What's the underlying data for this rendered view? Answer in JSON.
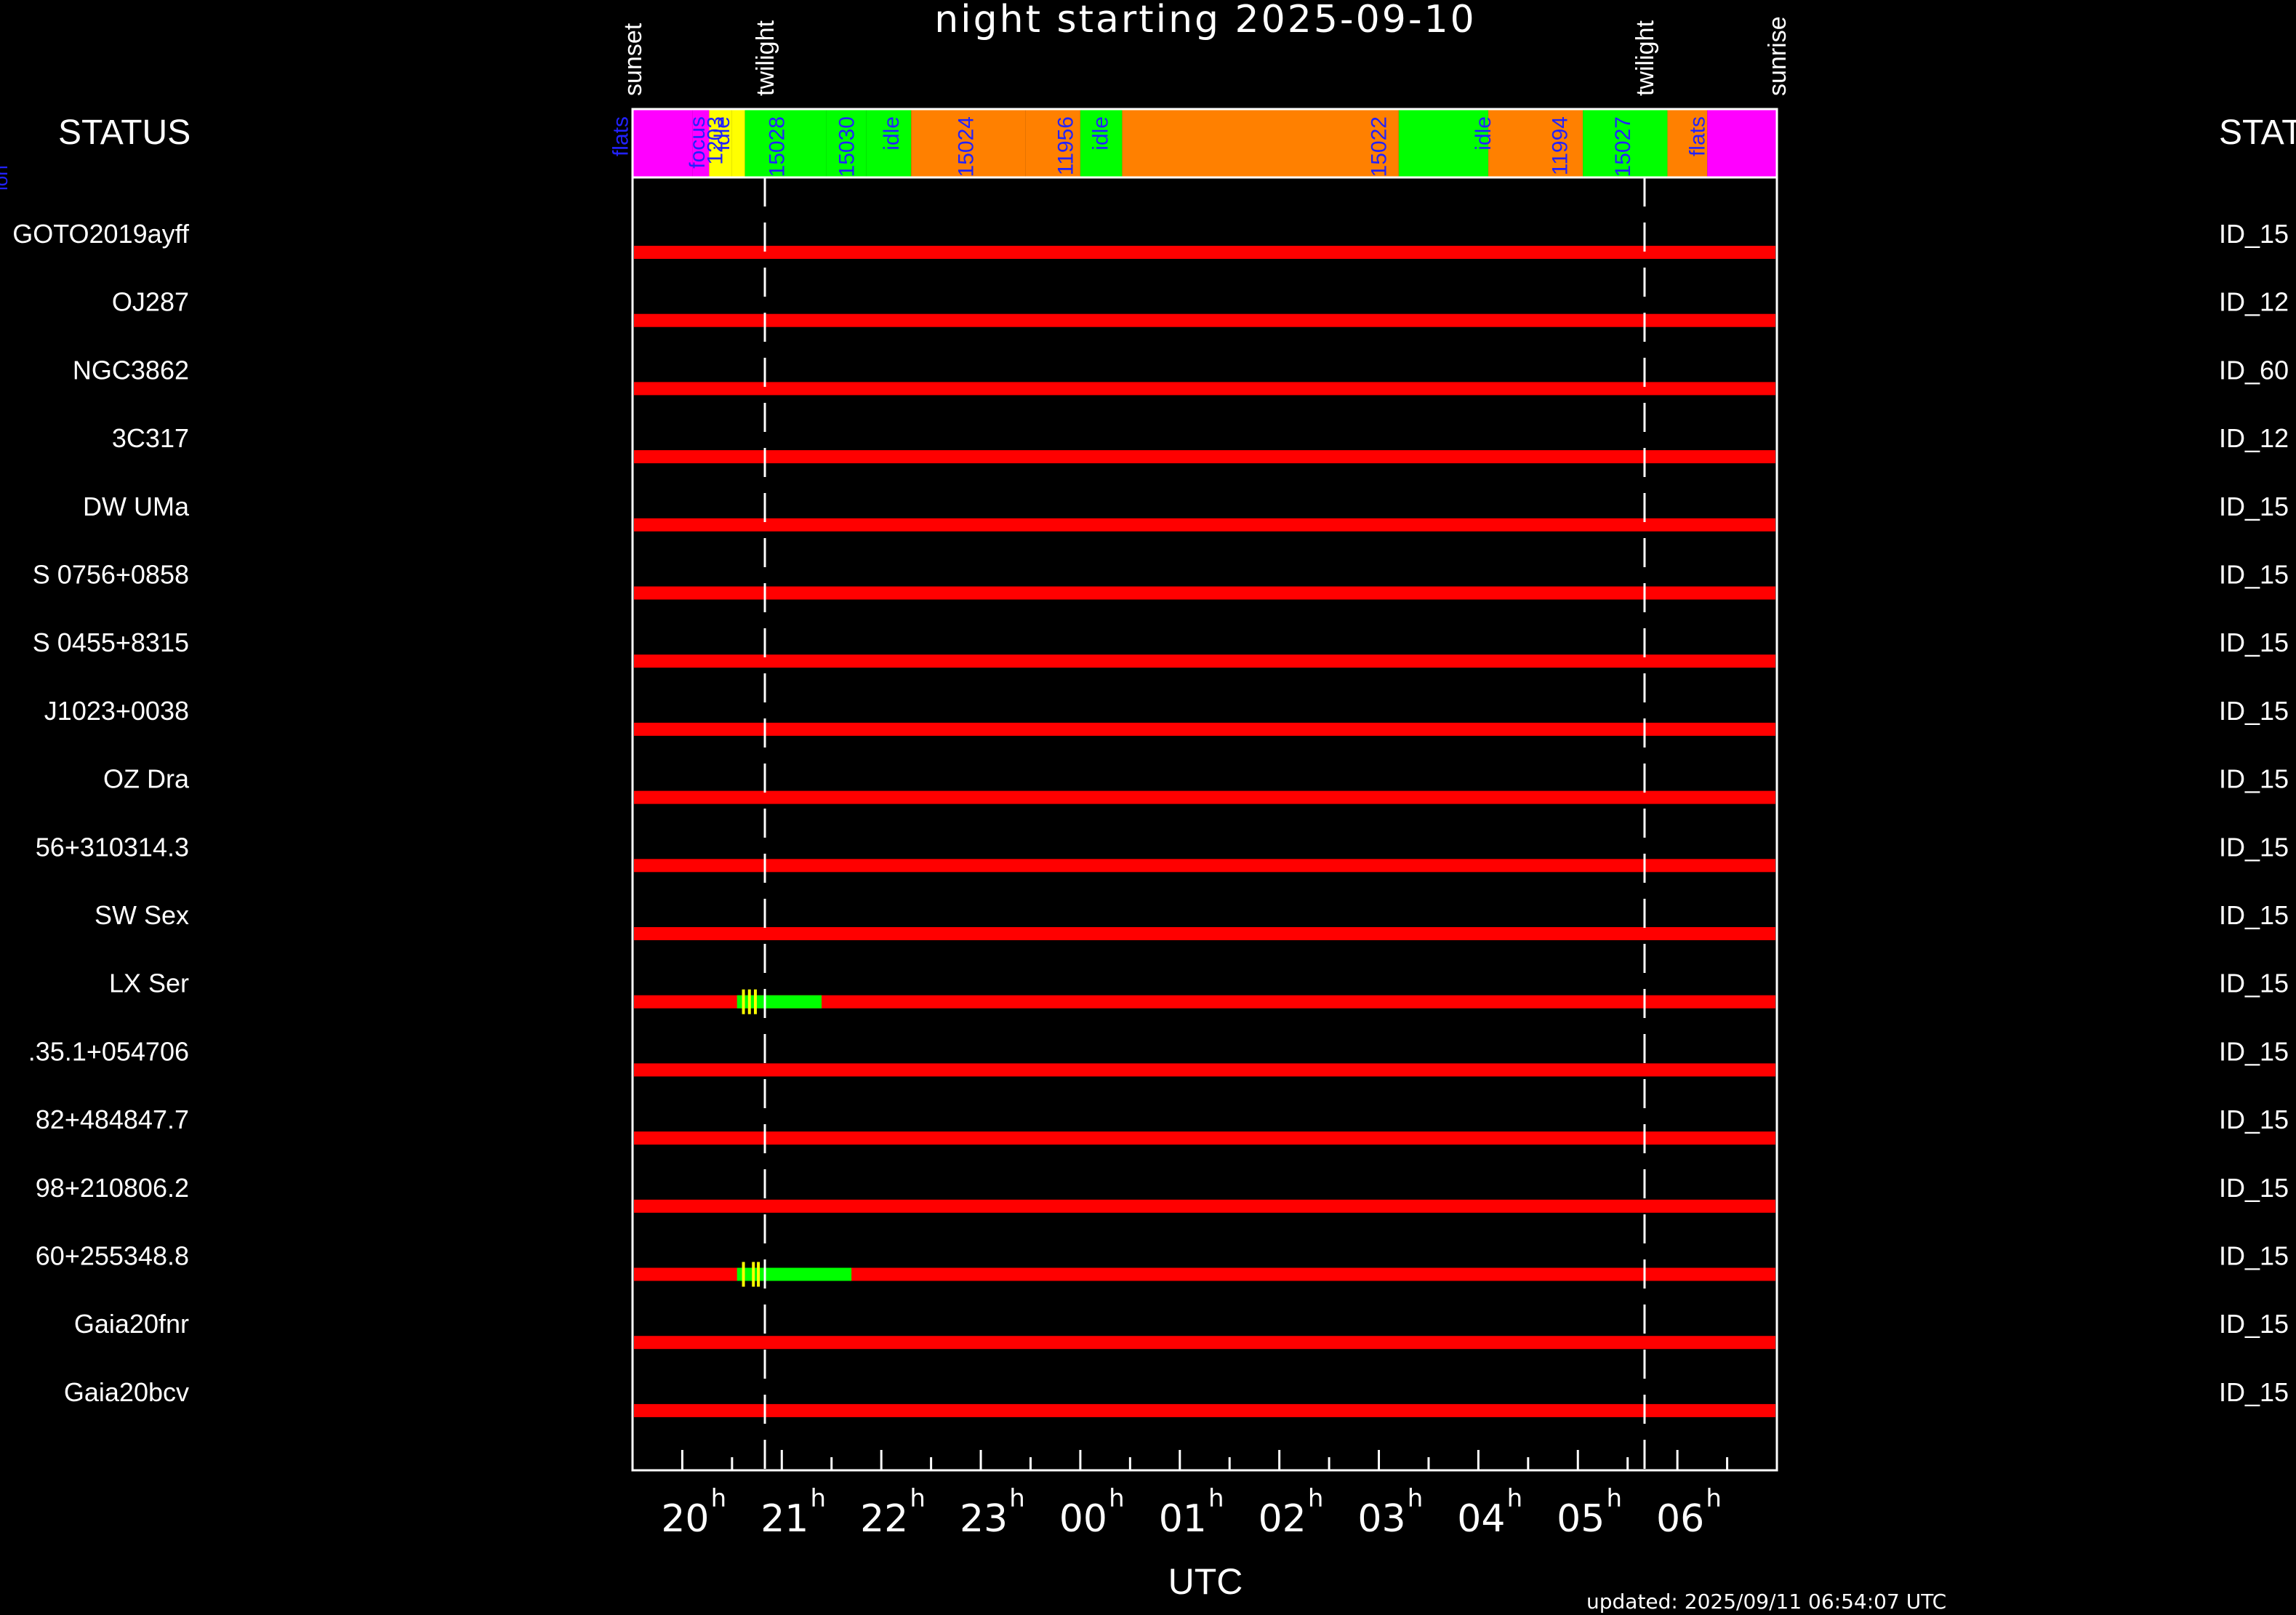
{
  "chart_data": {
    "type": "timeline",
    "title": "night starting 2025-09-10",
    "xlabel": "UTC",
    "x_unit": "hours UTC (24+ = next day)",
    "xlim": [
      19.5,
      31.0
    ],
    "x_ticks": [
      {
        "h": 20,
        "label": "20",
        "sup": "h"
      },
      {
        "h": 21,
        "label": "21",
        "sup": "h"
      },
      {
        "h": 22,
        "label": "22",
        "sup": "h"
      },
      {
        "h": 23,
        "label": "23",
        "sup": "h"
      },
      {
        "h": 24,
        "label": "00",
        "sup": "h"
      },
      {
        "h": 25,
        "label": "01",
        "sup": "h"
      },
      {
        "h": 26,
        "label": "02",
        "sup": "h"
      },
      {
        "h": 27,
        "label": "03",
        "sup": "h"
      },
      {
        "h": 28,
        "label": "04",
        "sup": "h"
      },
      {
        "h": 29,
        "label": "05",
        "sup": "h"
      },
      {
        "h": 30,
        "label": "06",
        "sup": "h"
      }
    ],
    "events": [
      {
        "name": "sunset",
        "h": 19.5,
        "dashed": false
      },
      {
        "name": "twilight",
        "h": 20.83,
        "dashed": true
      },
      {
        "name": "twilight",
        "h": 29.67,
        "dashed": true
      },
      {
        "name": "sunrise",
        "h": 31.0,
        "dashed": false
      }
    ],
    "status_left_label": "STATUS",
    "status_right_label": "STAT",
    "status_left_clip": "ion",
    "status_segments": [
      {
        "start": 19.5,
        "end": 20.1,
        "color": "#ff00ff",
        "label": "flats",
        "label_h": 19.38
      },
      {
        "start": 20.1,
        "end": 20.27,
        "color": "#ff00ff",
        "label": "focus",
        "label_h": 20.15
      },
      {
        "start": 20.27,
        "end": 20.5,
        "color": "#ffff00",
        "label": "idle",
        "label_h": 20.4
      },
      {
        "start": 20.5,
        "end": 20.63,
        "color": "#ffff00",
        "label": "1203",
        "label_h": 20.33
      },
      {
        "start": 20.63,
        "end": 21.45,
        "color": "#00ff00",
        "label": "15028",
        "label_h": 20.95
      },
      {
        "start": 21.45,
        "end": 21.85,
        "color": "#00ff00",
        "label": "15030",
        "label_h": 21.65
      },
      {
        "start": 21.85,
        "end": 22.3,
        "color": "#00ff00",
        "label": "idle",
        "label_h": 22.1
      },
      {
        "start": 22.3,
        "end": 23.45,
        "color": "#ff8000",
        "label": "15024",
        "label_h": 22.85
      },
      {
        "start": 23.45,
        "end": 24.0,
        "color": "#ff8000",
        "label": "11956",
        "label_h": 23.85
      },
      {
        "start": 24.0,
        "end": 24.42,
        "color": "#00ff00",
        "label": "idle",
        "label_h": 24.2
      },
      {
        "start": 24.42,
        "end": 27.2,
        "color": "#ff8000",
        "label": "15022",
        "label_h": 27.0
      },
      {
        "start": 27.2,
        "end": 28.1,
        "color": "#00ff00",
        "label": "idle",
        "label_h": 28.05
      },
      {
        "start": 28.1,
        "end": 29.05,
        "color": "#ff8000",
        "label": "11994",
        "label_h": 28.82
      },
      {
        "start": 29.05,
        "end": 29.9,
        "color": "#00ff00",
        "label": "15027",
        "label_h": 29.45
      },
      {
        "start": 29.9,
        "end": 30.3,
        "color": "#ff8000",
        "label": "flats",
        "label_h": 30.2
      },
      {
        "start": 30.3,
        "end": 31.0,
        "color": "#ff00ff",
        "label": "",
        "label_h": 30.6
      }
    ],
    "targets": [
      {
        "name": "GOTO2019ayff",
        "id": "ID_15",
        "observed": []
      },
      {
        "name": "OJ287",
        "id": "ID_12",
        "observed": []
      },
      {
        "name": "NGC3862",
        "id": "ID_60",
        "observed": []
      },
      {
        "name": "3C317",
        "id": "ID_12",
        "observed": []
      },
      {
        "name": "DW UMa",
        "id": "ID_15",
        "observed": []
      },
      {
        "name": "S 0756+0858",
        "id": "ID_15",
        "observed": []
      },
      {
        "name": "S 0455+8315",
        "id": "ID_15",
        "observed": []
      },
      {
        "name": "J1023+0038",
        "id": "ID_15",
        "observed": []
      },
      {
        "name": "OZ Dra",
        "id": "ID_15",
        "observed": []
      },
      {
        "name": "56+310314.3",
        "id": "ID_15",
        "observed": []
      },
      {
        "name": "SW Sex",
        "id": "ID_15",
        "observed": []
      },
      {
        "name": "LX Ser",
        "id": "ID_15",
        "observed": [
          {
            "start": 20.55,
            "end": 21.4,
            "color": "#00ff00"
          }
        ],
        "marks": [
          20.6,
          20.66,
          20.72
        ]
      },
      {
        "name": ".35.1+054706",
        "id": "ID_15",
        "observed": []
      },
      {
        "name": "82+484847.7",
        "id": "ID_15",
        "observed": []
      },
      {
        "name": "98+210806.2",
        "id": "ID_15",
        "observed": []
      },
      {
        "name": "60+255348.8",
        "id": "ID_15",
        "observed": [
          {
            "start": 20.55,
            "end": 21.7,
            "color": "#00ff00"
          }
        ],
        "marks": [
          20.6,
          20.7,
          20.75
        ]
      },
      {
        "name": "Gaia20fnr",
        "id": "ID_15",
        "observed": []
      },
      {
        "name": "Gaia20bcv",
        "id": "ID_15",
        "observed": []
      }
    ],
    "unavailable_color": "#ff0000",
    "grid": false,
    "updated": "updated: 2025/09/11 06:54:07 UTC"
  }
}
